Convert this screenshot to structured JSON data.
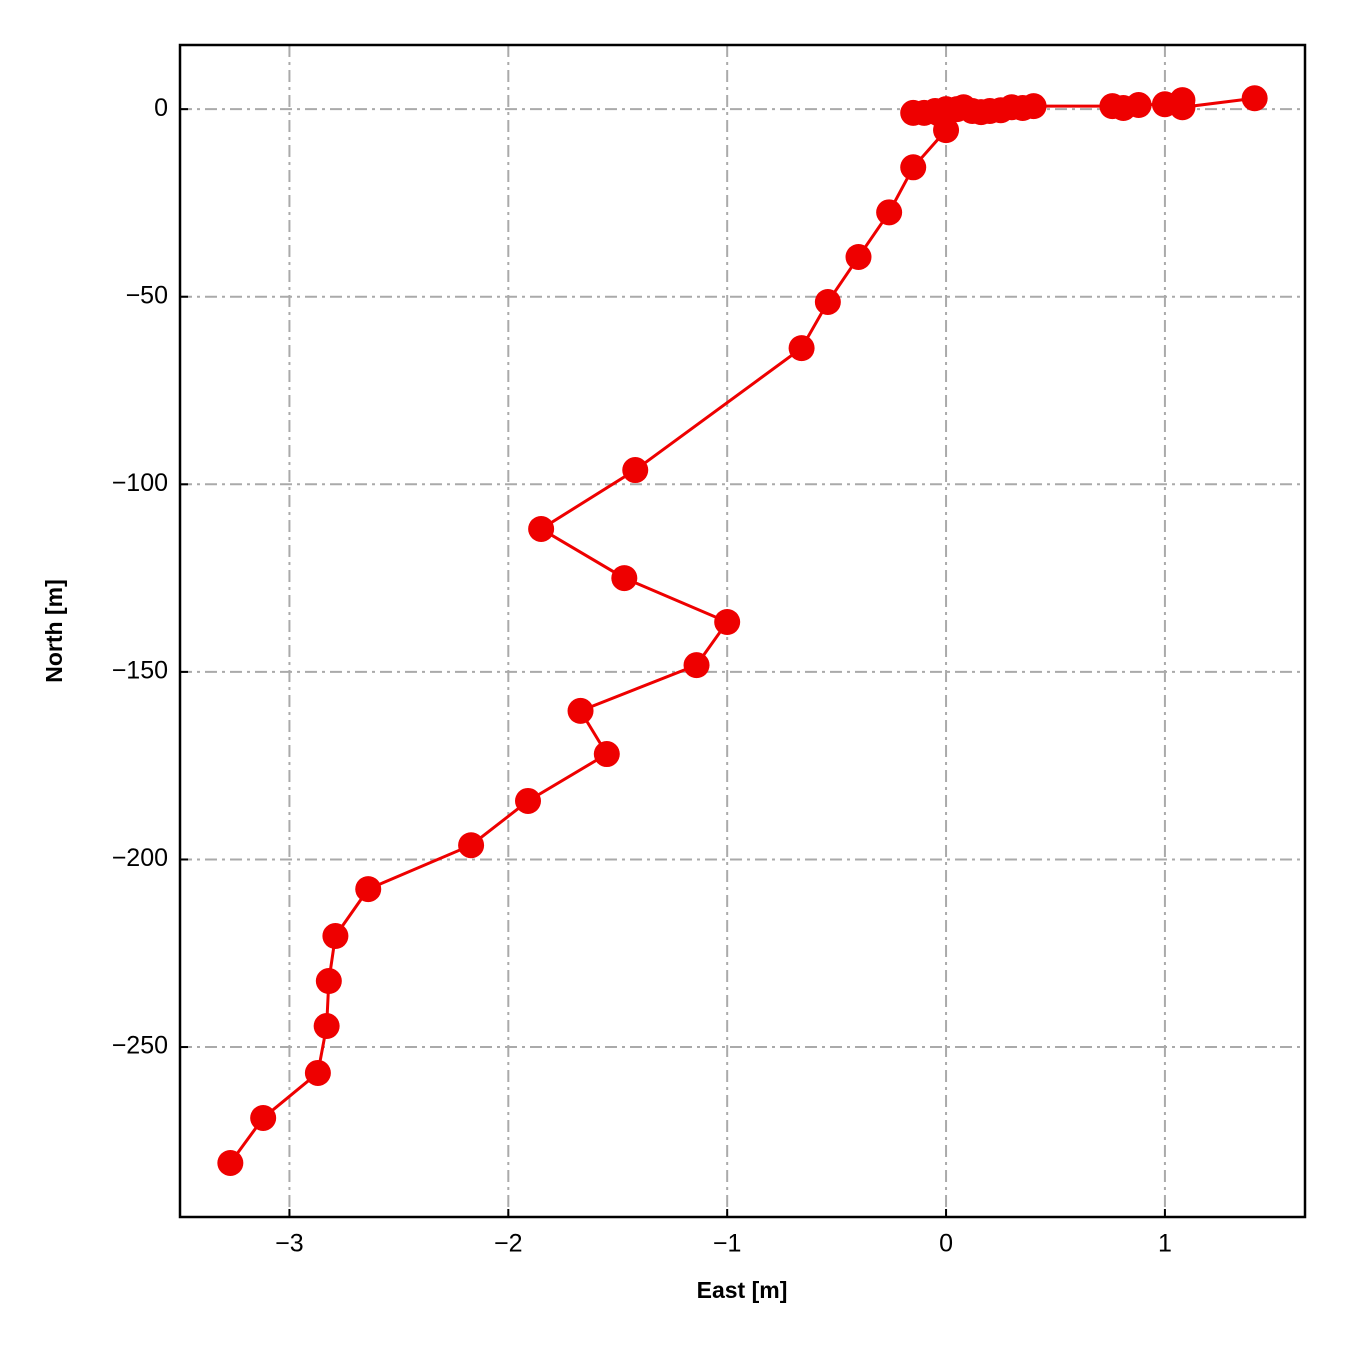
{
  "chart_data": {
    "type": "line",
    "x_label": "East [m]",
    "y_label": "North [m]",
    "x": [
      -3.27,
      -3.12,
      -2.87,
      -2.83,
      -2.82,
      -2.79,
      -2.64,
      -2.17,
      -1.91,
      -1.55,
      -1.67,
      -1.14,
      -1.0,
      -1.47,
      -1.85,
      -1.42,
      -0.66,
      -0.54,
      -0.4,
      -0.26,
      -0.15,
      0.0,
      -0.15,
      -0.1,
      -0.05,
      0.0,
      0.05,
      0.08,
      0.12,
      0.16,
      0.2,
      0.25,
      0.3,
      0.35,
      0.4,
      0.76,
      0.81,
      0.88,
      1.0,
      1.08,
      1.08,
      1.41
    ],
    "values": [
      -280.9,
      -268.9,
      -256.9,
      -244.4,
      -232.4,
      -220.4,
      -207.9,
      -196.2,
      -184.4,
      -171.9,
      -160.4,
      -148.2,
      -136.7,
      -125.0,
      -111.9,
      -96.2,
      -63.7,
      -51.4,
      -39.4,
      -27.5,
      -15.5,
      -5.6,
      -1.0,
      -1.0,
      -0.5,
      0.0,
      0.0,
      0.5,
      -0.5,
      -0.8,
      -0.5,
      -0.3,
      0.5,
      0.3,
      0.8,
      0.8,
      0.3,
      1.1,
      1.3,
      2.4,
      0.5,
      2.9
    ],
    "color": "#ee0000",
    "xlim": [
      -3.5,
      1.64
    ],
    "ylim": [
      -295.3,
      17.1
    ],
    "xticks": [
      {
        "value": -3,
        "label": "−3"
      },
      {
        "value": -2,
        "label": "−2"
      },
      {
        "value": -1,
        "label": "−1"
      },
      0,
      1
    ],
    "yticks": [
      0,
      {
        "value": -50,
        "label": "−50"
      },
      {
        "value": -100,
        "label": "−100"
      },
      {
        "value": -150,
        "label": "−150"
      },
      {
        "value": -200,
        "label": "−200"
      },
      {
        "value": -250,
        "label": "−250"
      }
    ],
    "grid": true
  }
}
